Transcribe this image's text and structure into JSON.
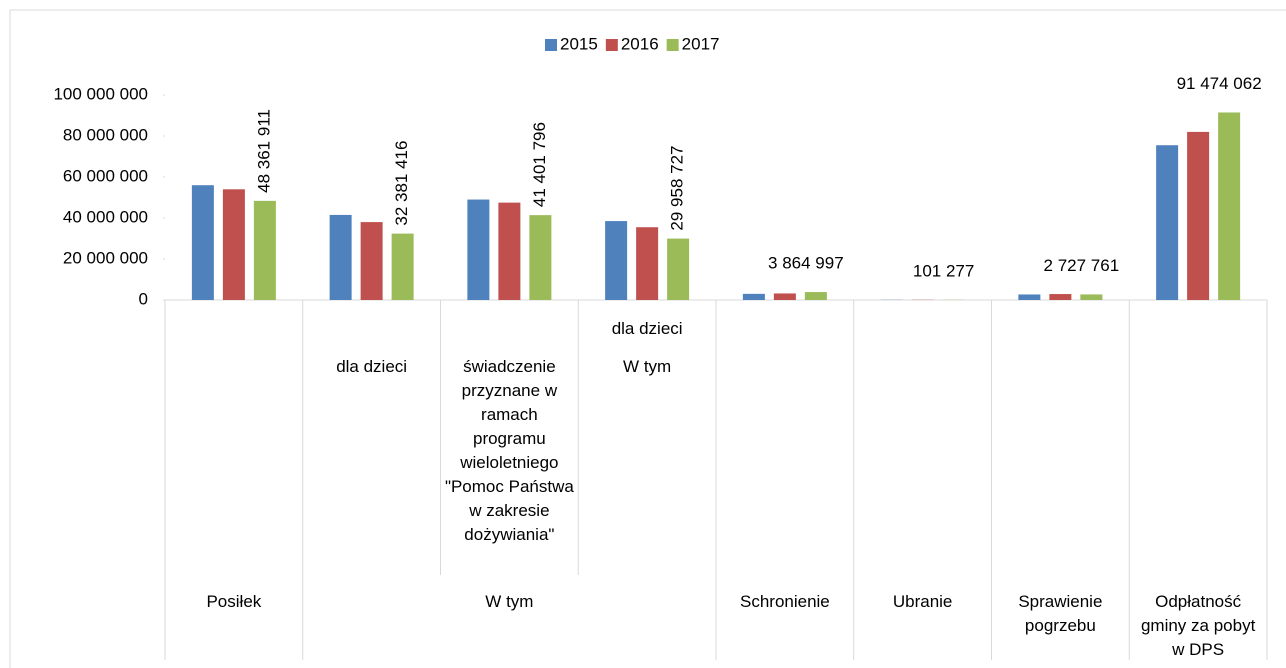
{
  "chart_data": {
    "type": "bar",
    "categories": [
      "Posiłek",
      "dla dzieci",
      "świadczenie przyznane w ramach programu wieloletniego \"Pomoc Państwa w zakresie dożywiania\"",
      "dla dzieci",
      "Schronienie",
      "Ubranie",
      "Sprawienie pogrzebu",
      "Odpłatność gminy za pobyt w DPS"
    ],
    "category_groups": [
      {
        "label": "W tym",
        "from": 1,
        "to": 3
      },
      {
        "label": "W tym",
        "from": 3,
        "to": 3
      }
    ],
    "series": [
      {
        "name": "2015",
        "color": "#4f81bd",
        "values": [
          56000000,
          41500000,
          49000000,
          38500000,
          3000000,
          100000,
          2700000,
          75500000
        ]
      },
      {
        "name": "2016",
        "color": "#c0504d",
        "values": [
          54000000,
          38000000,
          47500000,
          35500000,
          3200000,
          100000,
          2900000,
          82000000
        ]
      },
      {
        "name": "2017",
        "color": "#9bbb59",
        "values": [
          48361911,
          32381416,
          41401796,
          29958727,
          3864997,
          101277,
          2727761,
          91474062
        ],
        "value_labels": [
          "48 361 911",
          "32 381 416",
          "41 401 796",
          "29 958 727",
          "3 864 997",
          "101 277",
          "2 727 761",
          "91 474 062"
        ]
      }
    ],
    "ylim": [
      0,
      100000000
    ],
    "yticks": [
      0,
      {
        "value": 20000000,
        "label": "20 000 000"
      },
      {
        "value": 40000000,
        "label": "40 000 000"
      },
      {
        "value": 60000000,
        "label": "60 000 000"
      },
      {
        "value": 80000000,
        "label": "80 000 000"
      },
      {
        "value": 100000000,
        "label": "100 000 000"
      }
    ],
    "grid": false,
    "legend": "top"
  }
}
